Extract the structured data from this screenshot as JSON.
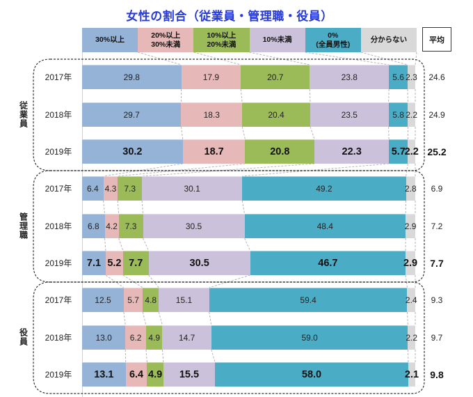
{
  "chart_data": {
    "type": "bar",
    "orientation": "horizontal",
    "stacked": true,
    "title": "女性の割合（従業員・管理職・役員）",
    "title_color": "#2639d9",
    "xlabel": "",
    "ylabel": "",
    "unit": "%",
    "xlim": [
      0,
      100
    ],
    "grid": false,
    "legend_position": "top",
    "legend": [
      {
        "label": "30%以上",
        "color": "#95b3d7"
      },
      {
        "label": "20%以上\n30%未満",
        "color": "#e6b9b8"
      },
      {
        "label": "10%以上\n20%未満",
        "color": "#9bbb59"
      },
      {
        "label": "10%未満",
        "color": "#ccc1da"
      },
      {
        "label": "0%\n(全員男性)",
        "color": "#4bacc6"
      },
      {
        "label": "分からない",
        "color": "#d9d9d9"
      }
    ],
    "average_header": "平均",
    "groups": [
      {
        "name": "従業員",
        "rows": [
          {
            "year": "2017年",
            "values": [
              29.8,
              17.9,
              20.7,
              23.8,
              5.6,
              2.3
            ],
            "labels": [
              "29.8",
              "17.9",
              "20.7",
              "23.8",
              "5.6",
              "2.3"
            ],
            "average": "24.6",
            "bold": false
          },
          {
            "year": "2018年",
            "values": [
              29.7,
              18.3,
              20.4,
              23.5,
              5.8,
              2.2
            ],
            "labels": [
              "29.7",
              "18.3",
              "20.4",
              "23.5",
              "5.8",
              "2.2"
            ],
            "average": "24.9",
            "bold": false
          },
          {
            "year": "2019年",
            "values": [
              30.2,
              18.7,
              20.8,
              22.3,
              5.7,
              2.2
            ],
            "labels": [
              "30.2",
              "18.7",
              "20.8",
              "22.3",
              "5.7",
              "2.2"
            ],
            "average": "25.2",
            "bold": true
          }
        ]
      },
      {
        "name": "管理職",
        "rows": [
          {
            "year": "2017年",
            "values": [
              6.4,
              4.3,
              7.3,
              30.1,
              49.2,
              2.8
            ],
            "labels": [
              "6.4",
              "4.3",
              "7.3",
              "30.1",
              "49.2",
              "2.8"
            ],
            "average": "6.9",
            "bold": false
          },
          {
            "year": "2018年",
            "values": [
              6.8,
              4.2,
              7.3,
              30.5,
              48.4,
              2.9
            ],
            "labels": [
              "6.8",
              "4.2",
              "7.3",
              "30.5",
              "48.4",
              "2.9"
            ],
            "average": "7.2",
            "bold": false
          },
          {
            "year": "2019年",
            "values": [
              7.1,
              5.2,
              7.7,
              30.5,
              46.7,
              2.9
            ],
            "labels": [
              "7.1",
              "5.2",
              "7.7",
              "30.5",
              "46.7",
              "2.9"
            ],
            "average": "7.7",
            "bold": true
          }
        ]
      },
      {
        "name": "役員",
        "rows": [
          {
            "year": "2017年",
            "values": [
              12.5,
              5.7,
              4.8,
              15.1,
              59.4,
              2.4
            ],
            "labels": [
              "12.5",
              "5.7",
              "4.8",
              "15.1",
              "59.4",
              "2.4"
            ],
            "average": "9.3",
            "bold": false
          },
          {
            "year": "2018年",
            "values": [
              13.0,
              6.2,
              4.9,
              14.7,
              59.0,
              2.2
            ],
            "labels": [
              "13.0",
              "6.2",
              "4.9",
              "14.7",
              "59.0",
              "2.2"
            ],
            "average": "9.7",
            "bold": false
          },
          {
            "year": "2019年",
            "values": [
              13.1,
              6.4,
              4.9,
              15.5,
              58.0,
              2.1
            ],
            "labels": [
              "13.1",
              "6.4",
              "4.9",
              "15.5",
              "58.0",
              "2.1"
            ],
            "average": "9.8",
            "bold": true
          }
        ]
      }
    ]
  }
}
